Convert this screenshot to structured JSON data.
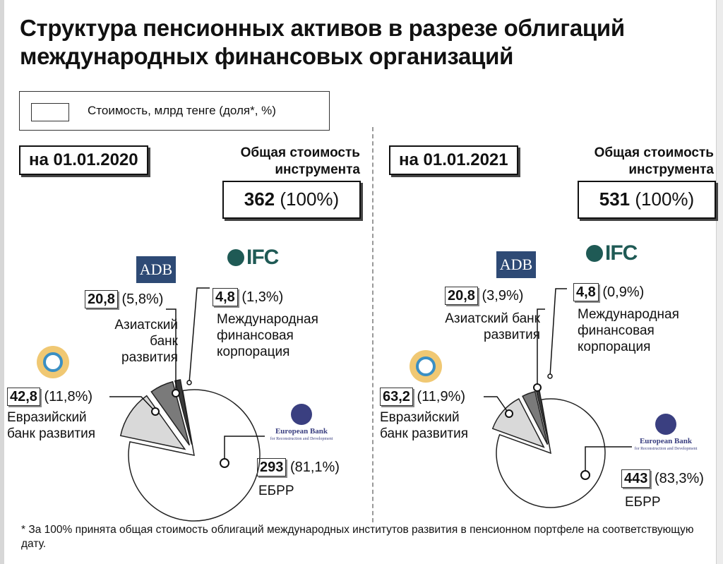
{
  "title": "Структура пенсионных активов в разрезе облигаций международных финансовых организаций",
  "legend": {
    "label": "Стоимость, млрд тенге (доля*, %)"
  },
  "total_label": "Общая стоимость инструмента",
  "panels": [
    {
      "date": "на 01.01.2020",
      "total_value": "362",
      "total_share": "(100%)",
      "segments": [
        {
          "value": "293",
          "share": "(81,1%)",
          "name": "ЕБРР",
          "logo": "ebrd-logo"
        },
        {
          "value": "42,8",
          "share": "(11,8%)",
          "name": "Евразийский банк развития",
          "logo": "eabr-logo"
        },
        {
          "value": "20,8",
          "share": "(5,8%)",
          "name": "Азиатский банк развития",
          "logo": "adb-logo"
        },
        {
          "value": "4,8",
          "share": "(1,3%)",
          "name": "Международная финансовая корпорация",
          "logo": "ifc-logo"
        }
      ]
    },
    {
      "date": "на 01.01.2021",
      "total_value": "531",
      "total_share": "(100%)",
      "segments": [
        {
          "value": "443",
          "share": "(83,3%)",
          "name": "ЕБРР",
          "logo": "ebrd-logo"
        },
        {
          "value": "63,2",
          "share": "(11,9%)",
          "name": "Евразийский банк развития",
          "logo": "eabr-logo"
        },
        {
          "value": "20,8",
          "share": "(3,9%)",
          "name": "Азиатский банк развития",
          "logo": "adb-logo"
        },
        {
          "value": "4,8",
          "share": "(0,9%)",
          "name": "Международная финансовая корпорация",
          "logo": "ifc-logo"
        }
      ]
    }
  ],
  "logos": {
    "adb": "ADB",
    "ifc": "IFC",
    "ebrd_name": "European Bank",
    "ebrd_sub": "for Reconstruction and Development"
  },
  "footnote": "* За 100% принята общая стоимость облигаций международных институтов развития в пенсионном портфеле на соответствующую дату.",
  "colors": {
    "ebrd": "#ffffff",
    "eabr": "#d9d9d9",
    "adb": "#7a7a7a",
    "ifc": "#3a3a3a",
    "outline": "#222222"
  },
  "chart_data": [
    {
      "type": "pie",
      "title": "на 01.01.2020",
      "unit": "млрд тенге",
      "categories": [
        "ЕБРР",
        "Евразийский банк развития",
        "Азиатский банк развития",
        "Международная финансовая корпорация"
      ],
      "values": [
        293,
        42.8,
        20.8,
        4.8
      ],
      "shares_percent": [
        81.1,
        11.8,
        5.8,
        1.3
      ],
      "total": 362,
      "exploded": [
        false,
        true,
        true,
        true
      ]
    },
    {
      "type": "pie",
      "title": "на 01.01.2021",
      "unit": "млрд тенге",
      "categories": [
        "ЕБРР",
        "Евразийский банк развития",
        "Азиатский банк развития",
        "Международная финансовая корпорация"
      ],
      "values": [
        443,
        63.2,
        20.8,
        4.8
      ],
      "shares_percent": [
        83.3,
        11.9,
        3.9,
        0.9
      ],
      "total": 531,
      "exploded": [
        false,
        true,
        true,
        true
      ]
    }
  ]
}
